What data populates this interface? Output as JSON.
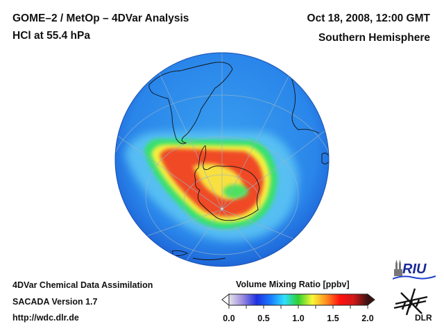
{
  "header": {
    "title_line1": "GOME–2 / MetOp – 4DVar Analysis",
    "title_line2": "HCl at 55.4 hPa",
    "date": "Oct 18, 2008, 12:00 GMT",
    "region": "Southern Hemisphere"
  },
  "footer": {
    "line1": "4DVar Chemical Data Assimilation",
    "line2": "SACADA Version 1.7",
    "line3": "http://wdc.dlr.de"
  },
  "colorbar": {
    "title": "Volume Mixing Ratio [ppbv]",
    "ticks": [
      "0.0",
      "0.5",
      "1.0",
      "1.5",
      "2.0"
    ],
    "range": [
      0.0,
      2.0
    ],
    "colors": [
      "#e8e4e8",
      "#9a8ae0",
      "#2030e0",
      "#1a7aff",
      "#30e0ff",
      "#30d030",
      "#f8f838",
      "#ff9020",
      "#ff1010",
      "#d01818",
      "#401010"
    ]
  },
  "logos": {
    "riu": "RIU",
    "dlr": "DLR"
  },
  "map": {
    "background_color": "#2a7ae8",
    "projection": "orthographic south polar"
  }
}
